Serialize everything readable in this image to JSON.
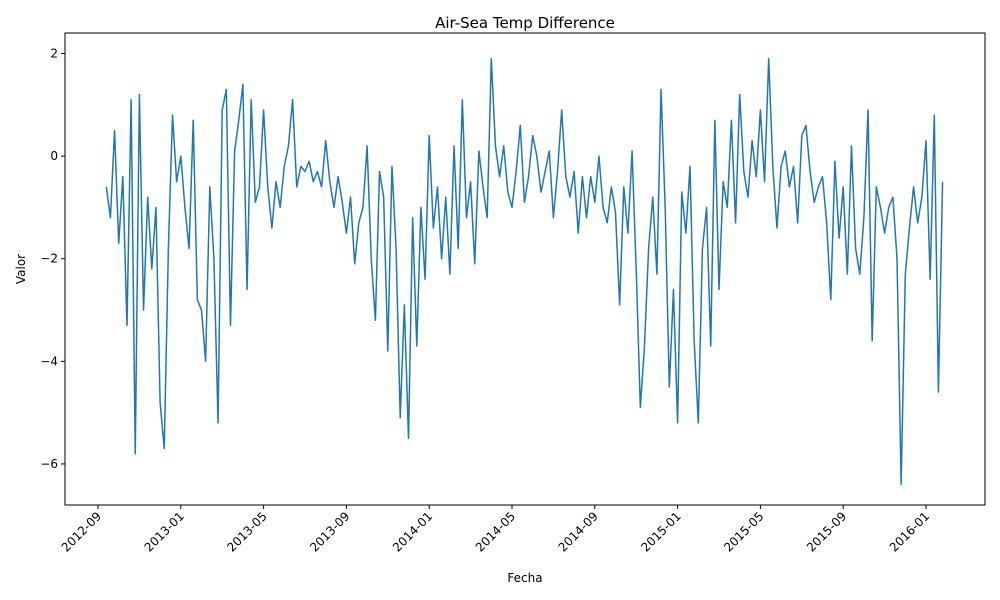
{
  "chart_data": {
    "type": "line",
    "title": "Air-Sea Temp Difference",
    "x_label": "Fecha",
    "y_label": "Valor",
    "x": [
      "2012-09",
      null,
      null,
      null,
      null,
      null,
      null,
      null,
      null,
      null,
      null,
      null,
      null,
      null,
      null,
      null,
      null,
      null,
      null,
      null,
      "2013-01",
      null,
      null,
      null,
      null,
      null,
      null,
      null,
      null,
      null,
      null,
      null,
      null,
      null,
      null,
      null,
      null,
      null,
      null,
      null,
      "2013-05",
      null,
      null,
      null,
      null,
      null,
      null,
      null,
      null,
      null,
      null,
      null,
      null,
      null,
      null,
      null,
      null,
      null,
      null,
      null,
      "2013-09",
      null,
      null,
      null,
      null,
      null,
      null,
      null,
      null,
      null,
      null,
      null,
      null,
      null,
      null,
      null,
      null,
      null,
      null,
      null,
      "2014-01",
      null,
      null,
      null,
      null,
      null,
      null,
      null,
      null,
      null,
      null,
      null,
      null,
      null,
      null,
      null,
      null,
      null,
      null,
      null,
      "2014-05",
      null,
      null,
      null,
      null,
      null,
      null,
      null,
      null,
      null,
      null,
      null,
      null,
      null,
      null,
      null,
      null,
      null,
      null,
      null,
      "2014-09",
      null,
      null,
      null,
      null,
      null,
      null,
      null,
      null,
      null,
      null,
      null,
      null,
      null,
      null,
      null,
      null,
      null,
      null,
      null,
      "2015-01",
      null,
      null,
      null,
      null,
      null,
      null,
      null,
      null,
      null,
      null,
      null,
      null,
      null,
      null,
      null,
      null,
      null,
      null,
      null,
      "2015-05",
      null,
      null,
      null,
      null,
      null,
      null,
      null,
      null,
      null,
      null,
      null,
      null,
      null,
      null,
      null,
      null,
      null,
      null,
      null,
      "2015-09",
      null,
      null,
      null,
      null,
      null,
      null,
      null,
      null,
      null,
      null,
      null,
      null,
      null,
      null,
      null,
      null,
      null,
      null,
      null,
      "2016-01",
      null,
      null,
      null,
      null
    ],
    "series": [
      {
        "color": "#1f77b4",
        "values": [
          null,
          null,
          -0.6,
          -1.2,
          0.5,
          -1.7,
          -0.4,
          -3.3,
          1.1,
          -5.8,
          1.2,
          -3.0,
          -0.8,
          -2.2,
          -1.0,
          -4.8,
          -5.7,
          -1.8,
          0.8,
          -0.5,
          0.0,
          -1.0,
          -1.8,
          0.7,
          -2.8,
          -3.0,
          -4.0,
          -0.6,
          -2.0,
          -5.2,
          0.9,
          1.3,
          -3.3,
          0.1,
          0.7,
          1.4,
          -2.6,
          1.1,
          -0.9,
          -0.6,
          0.9,
          -0.6,
          -1.4,
          -0.5,
          -1.0,
          -0.2,
          0.2,
          1.1,
          -0.6,
          -0.2,
          -0.3,
          -0.1,
          -0.5,
          -0.3,
          -0.6,
          0.3,
          -0.5,
          -1.0,
          -0.4,
          -0.9,
          -1.5,
          -0.8,
          -2.1,
          -1.3,
          -1.0,
          0.2,
          -2.0,
          -3.2,
          -0.3,
          -0.8,
          -3.8,
          -0.2,
          -1.8,
          -5.1,
          -2.9,
          -5.5,
          -1.2,
          -3.7,
          -1.0,
          -2.4,
          0.4,
          -1.4,
          -0.6,
          -2.0,
          -0.8,
          -2.3,
          0.2,
          -1.8,
          1.1,
          -1.2,
          -0.5,
          -2.1,
          0.1,
          -0.6,
          -1.2,
          1.9,
          0.2,
          -0.4,
          0.2,
          -0.7,
          -1.0,
          -0.3,
          0.6,
          -0.9,
          -0.4,
          0.4,
          0.0,
          -0.7,
          -0.3,
          0.1,
          -1.2,
          -0.3,
          0.9,
          -0.4,
          -0.8,
          -0.3,
          -1.5,
          -0.4,
          -1.2,
          -0.4,
          -0.9,
          0.0,
          -1.0,
          -1.3,
          -0.6,
          -1.1,
          -2.9,
          -0.6,
          -1.5,
          0.1,
          -2.2,
          -4.9,
          -3.7,
          -1.8,
          -0.8,
          -2.3,
          1.3,
          -1.0,
          -4.5,
          -2.6,
          -5.2,
          -0.7,
          -1.5,
          -0.2,
          -3.6,
          -5.2,
          -1.8,
          -1.0,
          -3.7,
          0.7,
          -2.6,
          -0.5,
          -1.0,
          0.7,
          -1.3,
          1.2,
          -0.3,
          -0.8,
          0.3,
          -0.4,
          0.9,
          -0.5,
          1.9,
          -0.2,
          -1.4,
          -0.2,
          0.1,
          -0.6,
          -0.2,
          -1.3,
          0.4,
          0.6,
          -0.3,
          -0.9,
          -0.6,
          -0.4,
          -1.3,
          -2.8,
          -0.1,
          -1.6,
          -0.6,
          -2.3,
          0.2,
          -1.8,
          -2.3,
          -1.2,
          0.9,
          -3.6,
          -0.6,
          -1.0,
          -1.5,
          -1.0,
          -0.8,
          -2.0,
          -6.4,
          -2.3,
          -1.4,
          -0.6,
          -1.3,
          -0.8,
          0.3,
          -2.4,
          0.8,
          -4.6,
          -0.5
        ]
      }
    ],
    "ylim": [
      -6.8,
      2.4
    ],
    "yticks": [
      {
        "value": -6,
        "label": "−6"
      },
      {
        "value": -4,
        "label": "−4"
      },
      {
        "value": -2,
        "label": "−2"
      },
      0,
      2
    ]
  }
}
